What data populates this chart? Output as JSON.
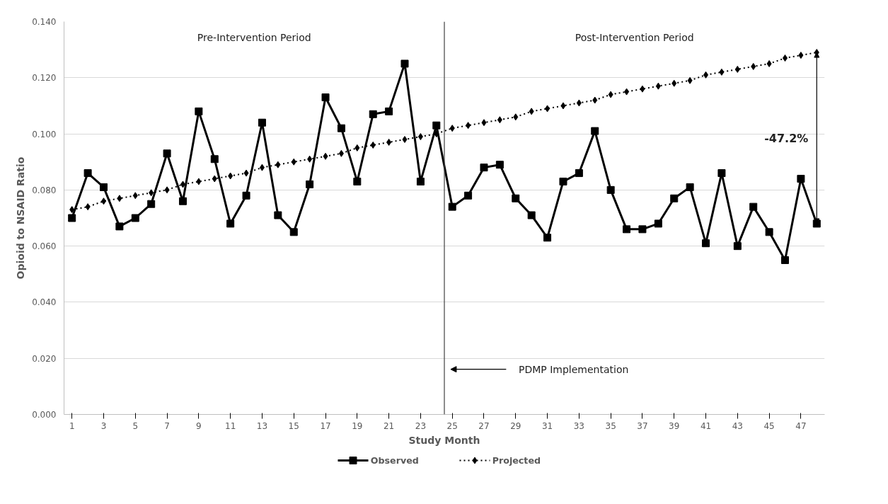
{
  "chart_data": {
    "type": "line",
    "xlabel": "Study Month",
    "ylabel": "Opioid to NSAID Ratio",
    "x": [
      1,
      2,
      3,
      4,
      5,
      6,
      7,
      8,
      9,
      10,
      11,
      12,
      13,
      14,
      15,
      16,
      17,
      18,
      19,
      20,
      21,
      22,
      23,
      24,
      25,
      26,
      27,
      28,
      29,
      30,
      31,
      32,
      33,
      34,
      35,
      36,
      37,
      38,
      39,
      40,
      41,
      42,
      43,
      44,
      45,
      46,
      47,
      48
    ],
    "series": [
      {
        "name": "Observed",
        "color": "#000000",
        "marker": "square",
        "line_style": "solid",
        "values": [
          0.07,
          0.086,
          0.081,
          0.067,
          0.07,
          0.075,
          0.093,
          0.076,
          0.108,
          0.091,
          0.068,
          0.078,
          0.104,
          0.071,
          0.065,
          0.082,
          0.113,
          0.102,
          0.083,
          0.107,
          0.108,
          0.125,
          0.083,
          0.103,
          0.074,
          0.078,
          0.088,
          0.089,
          0.077,
          0.071,
          0.063,
          0.083,
          0.086,
          0.101,
          0.08,
          0.066,
          0.066,
          0.068,
          0.077,
          0.081,
          0.061,
          0.086,
          0.06,
          0.074,
          0.065,
          0.055,
          0.084,
          0.068
        ]
      },
      {
        "name": "Projected",
        "color": "#000000",
        "marker": "diamond",
        "line_style": "dotted",
        "values": [
          0.073,
          0.074,
          0.076,
          0.077,
          0.078,
          0.079,
          0.08,
          0.082,
          0.083,
          0.084,
          0.085,
          0.086,
          0.088,
          0.089,
          0.09,
          0.091,
          0.092,
          0.093,
          0.095,
          0.096,
          0.097,
          0.098,
          0.099,
          0.1,
          0.102,
          0.103,
          0.104,
          0.105,
          0.106,
          0.108,
          0.109,
          0.11,
          0.111,
          0.112,
          0.114,
          0.115,
          0.116,
          0.117,
          0.118,
          0.119,
          0.121,
          0.122,
          0.123,
          0.124,
          0.125,
          0.127,
          0.128,
          0.129
        ]
      }
    ],
    "xlim": [
      0.5,
      48.5
    ],
    "xticks": [
      1,
      3,
      5,
      7,
      9,
      11,
      13,
      15,
      17,
      19,
      21,
      23,
      25,
      27,
      29,
      31,
      33,
      35,
      37,
      39,
      41,
      43,
      45,
      47
    ],
    "ylim": [
      0,
      0.14
    ],
    "yticks": [
      {
        "value": 0,
        "label": "0.000"
      },
      {
        "value": 0.02,
        "label": "0.020"
      },
      {
        "value": 0.04,
        "label": "0.040"
      },
      {
        "value": 0.06,
        "label": "0.060"
      },
      {
        "value": 0.08,
        "label": "0.080"
      },
      {
        "value": 0.1,
        "label": "0.100"
      },
      {
        "value": 0.12,
        "label": "0.120"
      },
      {
        "value": 0.14,
        "label": "0.140"
      }
    ],
    "grid": "y",
    "legend": "bottom",
    "ref_lines": [
      {
        "axis": "x",
        "value": 24.5,
        "label": null,
        "color": "#404040"
      }
    ],
    "annotations": [
      "Pre-Intervention Period",
      "Post-Intervention Period",
      "PDMP Implementation",
      "-47.2%"
    ]
  }
}
